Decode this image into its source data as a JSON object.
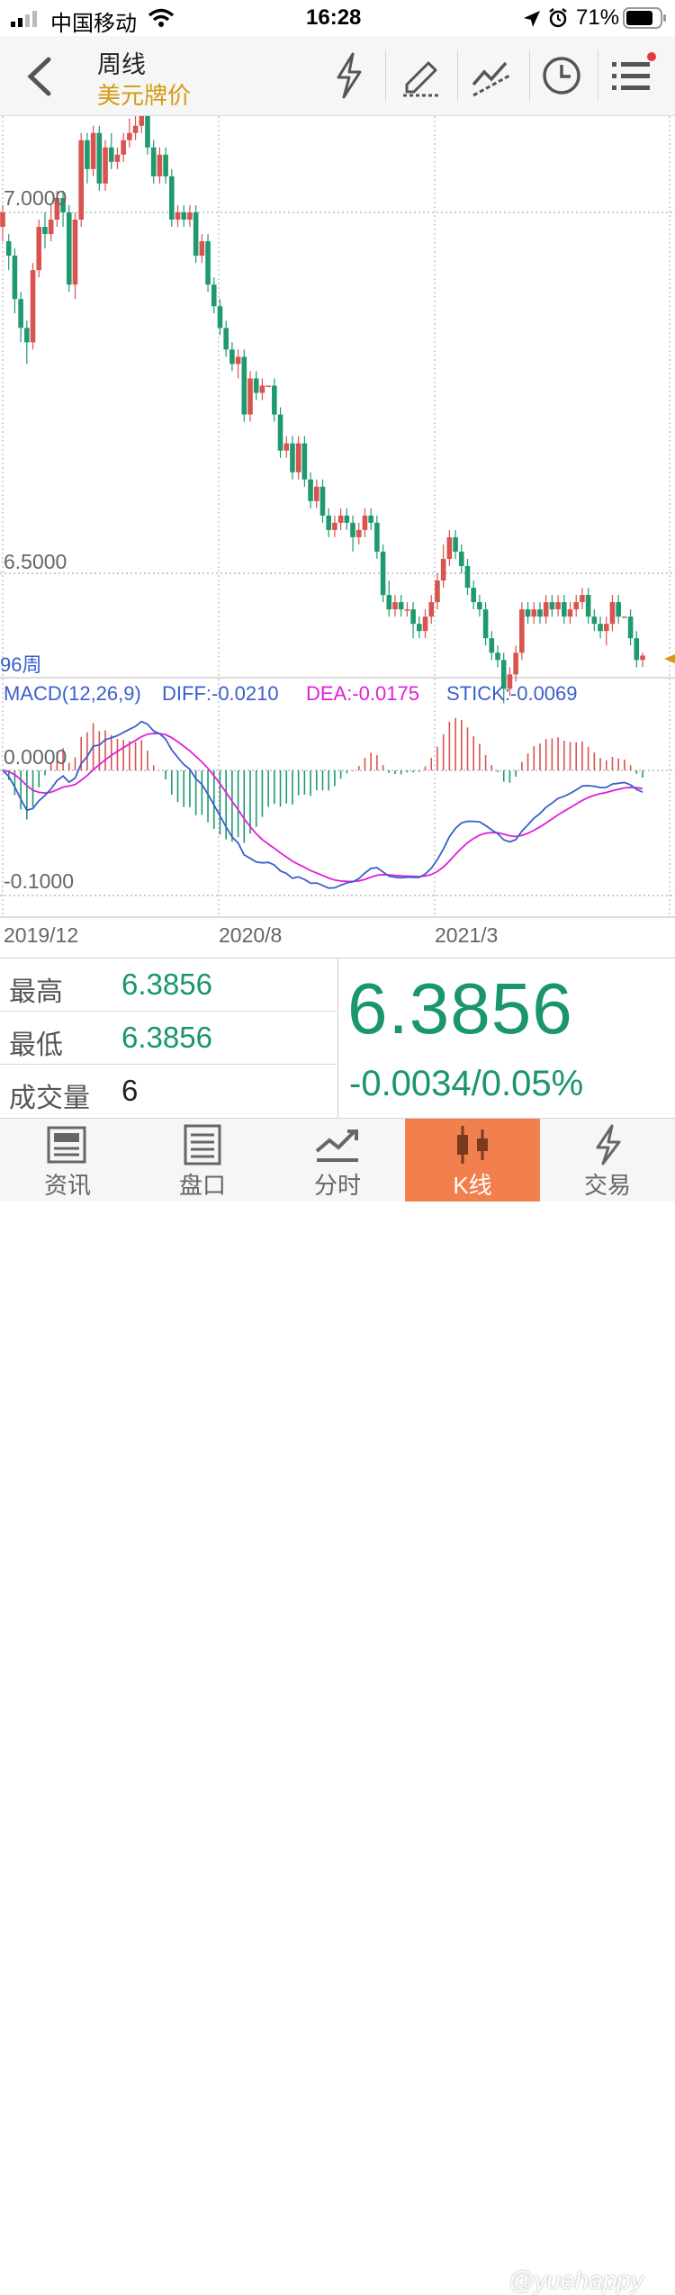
{
  "status_bar": {
    "carrier": "中国移动",
    "time": "16:28",
    "battery": "71%"
  },
  "nav": {
    "title": "周线",
    "subtitle": "美元牌价",
    "tools": [
      "flash-icon",
      "draw-pen-icon",
      "trendline-icon",
      "clock-icon",
      "menu-list-icon"
    ],
    "notification_dot_color": "#e53935"
  },
  "colors": {
    "up": "#d9534f",
    "down": "#1f9a6f",
    "diff": "#3a5fcc",
    "dea": "#e01fd8",
    "accent": "#d49a12"
  },
  "chart": {
    "price_ticks": [
      "7.0000",
      "6.5000"
    ],
    "period_label": "96周",
    "macd_label": "MACD(12,26,9)",
    "diff_label": "DIFF:-0.0210",
    "dea_label": "DEA:-0.0175",
    "stick_label": "STICK:-0.0069",
    "macd_ticks": [
      "0.0000",
      "-0.1000"
    ],
    "date_labels": [
      "2019/12",
      "2020/8",
      "2021/3"
    ]
  },
  "chart_data": {
    "type": "candlestick",
    "period": "weekly",
    "price_axis_ticks": [
      7.0,
      6.5
    ],
    "dates_labeled": [
      "2019/12",
      "2020/8",
      "2021/3"
    ],
    "candles": [
      [
        6.98,
        7.0,
        7.01,
        6.96
      ],
      [
        6.96,
        6.94,
        6.97,
        6.92
      ],
      [
        6.94,
        6.88,
        6.95,
        6.86
      ],
      [
        6.88,
        6.84,
        6.89,
        6.82
      ],
      [
        6.84,
        6.82,
        6.85,
        6.79
      ],
      [
        6.82,
        6.92,
        6.93,
        6.81
      ],
      [
        6.92,
        6.98,
        6.99,
        6.91
      ],
      [
        6.98,
        6.97,
        7.0,
        6.95
      ],
      [
        6.97,
        6.99,
        7.01,
        6.96
      ],
      [
        6.99,
        7.02,
        7.03,
        6.98
      ],
      [
        7.02,
        7.0,
        7.03,
        6.98
      ],
      [
        7.0,
        6.9,
        7.01,
        6.89
      ],
      [
        6.9,
        6.99,
        7.0,
        6.88
      ],
      [
        6.99,
        7.1,
        7.11,
        6.98
      ],
      [
        7.1,
        7.06,
        7.11,
        7.04
      ],
      [
        7.06,
        7.11,
        7.12,
        7.05
      ],
      [
        7.11,
        7.04,
        7.12,
        7.03
      ],
      [
        7.04,
        7.09,
        7.1,
        7.03
      ],
      [
        7.09,
        7.07,
        7.11,
        7.06
      ],
      [
        7.07,
        7.08,
        7.09,
        7.06
      ],
      [
        7.08,
        7.1,
        7.11,
        7.07
      ],
      [
        7.1,
        7.11,
        7.13,
        7.09
      ],
      [
        7.11,
        7.12,
        7.15,
        7.1
      ],
      [
        7.12,
        7.15,
        7.16,
        7.11
      ],
      [
        7.15,
        7.09,
        7.16,
        7.08
      ],
      [
        7.09,
        7.05,
        7.1,
        7.04
      ],
      [
        7.05,
        7.08,
        7.09,
        7.04
      ],
      [
        7.08,
        7.05,
        7.09,
        7.04
      ],
      [
        7.05,
        6.99,
        7.06,
        6.98
      ],
      [
        6.99,
        7.0,
        7.01,
        6.98
      ],
      [
        7.0,
        6.99,
        7.01,
        6.98
      ],
      [
        6.99,
        7.0,
        7.01,
        6.98
      ],
      [
        7.0,
        6.94,
        7.01,
        6.93
      ],
      [
        6.94,
        6.96,
        6.97,
        6.93
      ],
      [
        6.96,
        6.9,
        6.97,
        6.89
      ],
      [
        6.9,
        6.87,
        6.91,
        6.86
      ],
      [
        6.87,
        6.84,
        6.88,
        6.83
      ],
      [
        6.84,
        6.81,
        6.85,
        6.8
      ],
      [
        6.81,
        6.79,
        6.82,
        6.78
      ],
      [
        6.79,
        6.8,
        6.81,
        6.77
      ],
      [
        6.8,
        6.72,
        6.81,
        6.71
      ],
      [
        6.72,
        6.77,
        6.78,
        6.71
      ],
      [
        6.77,
        6.75,
        6.78,
        6.74
      ],
      [
        6.75,
        6.76,
        6.77,
        6.74
      ],
      [
        6.76,
        6.76,
        6.76,
        6.76
      ],
      [
        6.76,
        6.72,
        6.77,
        6.71
      ],
      [
        6.72,
        6.67,
        6.73,
        6.66
      ],
      [
        6.67,
        6.68,
        6.69,
        6.66
      ],
      [
        6.68,
        6.64,
        6.69,
        6.63
      ],
      [
        6.64,
        6.68,
        6.69,
        6.63
      ],
      [
        6.68,
        6.63,
        6.69,
        6.62
      ],
      [
        6.63,
        6.6,
        6.64,
        6.59
      ],
      [
        6.6,
        6.62,
        6.63,
        6.59
      ],
      [
        6.62,
        6.58,
        6.63,
        6.57
      ],
      [
        6.58,
        6.56,
        6.59,
        6.55
      ],
      [
        6.56,
        6.57,
        6.58,
        6.55
      ],
      [
        6.57,
        6.58,
        6.59,
        6.56
      ],
      [
        6.58,
        6.57,
        6.59,
        6.56
      ],
      [
        6.57,
        6.55,
        6.58,
        6.53
      ],
      [
        6.55,
        6.56,
        6.57,
        6.54
      ],
      [
        6.56,
        6.58,
        6.59,
        6.55
      ],
      [
        6.58,
        6.57,
        6.59,
        6.56
      ],
      [
        6.57,
        6.53,
        6.58,
        6.52
      ],
      [
        6.53,
        6.47,
        6.54,
        6.46
      ],
      [
        6.47,
        6.45,
        6.49,
        6.44
      ],
      [
        6.45,
        6.46,
        6.47,
        6.44
      ],
      [
        6.46,
        6.45,
        6.47,
        6.44
      ],
      [
        6.45,
        6.45,
        6.46,
        6.44
      ],
      [
        6.45,
        6.43,
        6.46,
        6.41
      ],
      [
        6.43,
        6.42,
        6.44,
        6.41
      ],
      [
        6.42,
        6.44,
        6.45,
        6.41
      ],
      [
        6.44,
        6.46,
        6.47,
        6.43
      ],
      [
        6.46,
        6.49,
        6.5,
        6.45
      ],
      [
        6.49,
        6.52,
        6.54,
        6.48
      ],
      [
        6.52,
        6.55,
        6.56,
        6.51
      ],
      [
        6.55,
        6.53,
        6.56,
        6.52
      ],
      [
        6.53,
        6.51,
        6.54,
        6.5
      ],
      [
        6.51,
        6.48,
        6.52,
        6.47
      ],
      [
        6.48,
        6.46,
        6.49,
        6.45
      ],
      [
        6.46,
        6.45,
        6.47,
        6.44
      ],
      [
        6.45,
        6.41,
        6.46,
        6.4
      ],
      [
        6.41,
        6.39,
        6.42,
        6.38
      ],
      [
        6.39,
        6.38,
        6.4,
        6.37
      ],
      [
        6.38,
        6.34,
        6.39,
        6.32
      ],
      [
        6.34,
        6.36,
        6.37,
        6.33
      ],
      [
        6.36,
        6.39,
        6.4,
        6.35
      ],
      [
        6.39,
        6.45,
        6.46,
        6.38
      ],
      [
        6.45,
        6.44,
        6.46,
        6.43
      ],
      [
        6.44,
        6.45,
        6.46,
        6.43
      ],
      [
        6.45,
        6.44,
        6.46,
        6.43
      ],
      [
        6.44,
        6.46,
        6.47,
        6.43
      ],
      [
        6.46,
        6.45,
        6.47,
        6.44
      ],
      [
        6.45,
        6.46,
        6.47,
        6.44
      ],
      [
        6.46,
        6.44,
        6.47,
        6.43
      ],
      [
        6.44,
        6.45,
        6.46,
        6.43
      ],
      [
        6.45,
        6.46,
        6.47,
        6.44
      ],
      [
        6.46,
        6.47,
        6.48,
        6.45
      ],
      [
        6.47,
        6.44,
        6.48,
        6.43
      ],
      [
        6.44,
        6.43,
        6.45,
        6.42
      ],
      [
        6.43,
        6.42,
        6.44,
        6.41
      ],
      [
        6.42,
        6.43,
        6.44,
        6.4
      ],
      [
        6.43,
        6.46,
        6.47,
        6.42
      ],
      [
        6.46,
        6.44,
        6.47,
        6.43
      ],
      [
        6.44,
        6.44,
        6.44,
        6.44
      ],
      [
        6.44,
        6.41,
        6.45,
        6.4
      ],
      [
        6.41,
        6.38,
        6.42,
        6.37
      ],
      [
        6.38,
        6.386,
        6.39,
        6.37
      ]
    ],
    "macd_axis_ticks": [
      0.0,
      -0.1
    ],
    "diff_last": -0.021,
    "dea_last": -0.0175,
    "stick_last": -0.0069
  },
  "quote": {
    "high_label": "最高",
    "high_value": "6.3856",
    "low_label": "最低",
    "low_value": "6.3856",
    "volume_label": "成交量",
    "volume_value": "6",
    "price": "6.3856",
    "change": "-0.0034/0.05%"
  },
  "tabbar": {
    "tabs": [
      {
        "label": "资讯",
        "icon": "news-icon"
      },
      {
        "label": "盘口",
        "icon": "orderbook-icon"
      },
      {
        "label": "分时",
        "icon": "timeshare-icon"
      },
      {
        "label": "K线",
        "icon": "kline-icon",
        "active": true
      },
      {
        "label": "交易",
        "icon": "trade-icon"
      }
    ],
    "watermark": "@yuehappy"
  }
}
